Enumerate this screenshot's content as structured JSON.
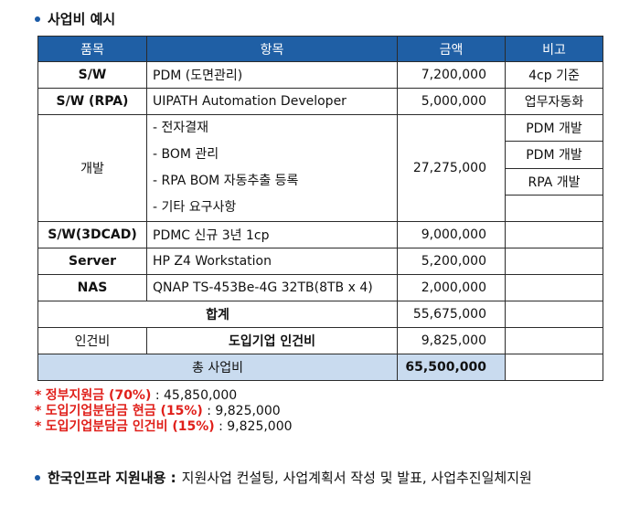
{
  "heading": "사업비 예시",
  "table": {
    "headers": [
      "품목",
      "항목",
      "금액",
      "비고"
    ],
    "rows": [
      {
        "item": "S/W",
        "detail": "PDM (도면관리)",
        "amount": "7,200,000",
        "note": "4cp 기준"
      },
      {
        "item": "S/W (RPA)",
        "detail": "UIPATH Automation Developer",
        "amount": "5,000,000",
        "note": "업무자동화"
      },
      {
        "item": "개발",
        "details": [
          "- 전자결재",
          "- BOM 관리",
          "- RPA BOM 자동추출 등록",
          "- 기타 요구사항"
        ],
        "amount": "27,275,000",
        "notes": [
          "PDM 개발",
          "PDM 개발",
          "RPA 개발",
          ""
        ]
      },
      {
        "item": "S/W(3DCAD)",
        "detail": "PDMC 신규 3년 1cp",
        "amount": "9,000,000",
        "note": ""
      },
      {
        "item": "Server",
        "detail": "HP Z4 Workstation",
        "amount": "5,200,000",
        "note": ""
      },
      {
        "item": "NAS",
        "detail": "QNAP TS-453Be-4G 32TB(8TB x 4)",
        "amount": "2,000,000",
        "note": ""
      }
    ],
    "subtotal": {
      "label": "합계",
      "amount": "55,675,000"
    },
    "labor": {
      "item": "인건비",
      "detail": "도입기업 인건비",
      "amount": "9,825,000"
    },
    "total": {
      "label": "총 사업비",
      "amount": "65,500,000"
    }
  },
  "notes": [
    {
      "mark": "*",
      "label": "정부지원금 (70%)",
      "sep": " : ",
      "value": "45,850,000"
    },
    {
      "mark": "*",
      "label": "도입기업분담금 현금 (15%)",
      "sep": " : ",
      "value": "9,825,000"
    },
    {
      "mark": "*",
      "label": "도입기업분담금 인건비 (15%)",
      "sep": " : ",
      "value": "9,825,000"
    }
  ],
  "info": {
    "label": "한국인프라 지원내용 :",
    "value": "지원사업 컨설팅, 사업계획서 작성 및 발표, 사업추진일체지원"
  },
  "colors": {
    "header_bg": "#1f5fa5",
    "total_bg": "#c9dbef",
    "accent_red": "#e0201b",
    "bullet": "#1a5aa6"
  }
}
